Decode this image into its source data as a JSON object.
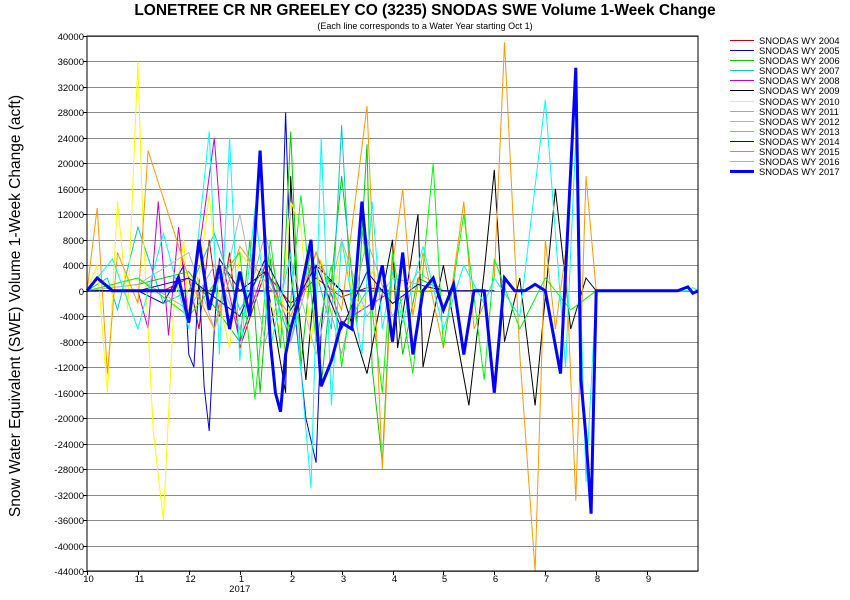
{
  "chart_data": {
    "type": "line",
    "title": "LONETREE CR NR GREELEY CO (3235) SNODAS SWE Volume 1-Week Change",
    "subtitle": "(Each line corresponds to a Water Year starting Oct 1)",
    "ylabel": "Snow Water Equivalent (SWE) Volume 1-Week Change (acft)",
    "xlabel": "",
    "ylim": [
      -44000,
      40000
    ],
    "yticks": [
      40000,
      36000,
      32000,
      28000,
      24000,
      20000,
      16000,
      12000,
      8000,
      4000,
      0,
      -4000,
      -8000,
      -12000,
      -16000,
      -20000,
      -24000,
      -28000,
      -32000,
      -36000,
      -40000,
      -44000
    ],
    "yticks_labels": [
      "40000",
      "36000",
      "32000",
      "28000",
      "24000",
      "20000",
      "16000",
      "12000",
      "8000",
      "4000",
      "0",
      "-4000",
      "-8000",
      "-12000",
      "-16000",
      "-20000",
      "-24000",
      "-28000",
      "-32000",
      "-36000",
      "-40000",
      "-44000"
    ],
    "xlim": [
      0,
      12
    ],
    "xticks": [
      0,
      1,
      2,
      3,
      4,
      5,
      6,
      7,
      8,
      9,
      10,
      11
    ],
    "xticks_labels": [
      "10",
      "11",
      "12",
      "1",
      "2",
      "3",
      "4",
      "5",
      "6",
      "7",
      "8",
      "9"
    ],
    "x_year_label": "2017",
    "x_year_position": 3,
    "grid": true,
    "legend_position": "right",
    "series": [
      {
        "name": "SNODAS WY 2004",
        "color": "#cc0000",
        "width": 1,
        "x": [
          0,
          1.5,
          2.0,
          2.2,
          2.4,
          2.6,
          2.8,
          3.0,
          3.5,
          4.0,
          4.5,
          5.0,
          5.5,
          6.0,
          8.0
        ],
        "y": [
          0,
          0,
          2000,
          -6000,
          8000,
          -4000,
          6000,
          -9000,
          3000,
          -2000,
          2000,
          -1000,
          500,
          0,
          0
        ]
      },
      {
        "name": "SNODAS WY 2005",
        "color": "#0000cc",
        "width": 1,
        "x": [
          0,
          1.0,
          1.5,
          1.9,
          2.0,
          2.1,
          2.2,
          2.3,
          2.4,
          2.5,
          2.6,
          3.0,
          3.8,
          3.9,
          4.0,
          4.3,
          4.5,
          4.6,
          4.7,
          5.0,
          5.5,
          6.0,
          8.0
        ],
        "y": [
          0,
          0,
          -2000,
          4000,
          -10000,
          -12000,
          2000,
          -15000,
          -22000,
          -6000,
          5000,
          0,
          0,
          28000,
          3000,
          -20000,
          -27000,
          -6000,
          2000,
          0,
          0,
          0,
          0
        ]
      },
      {
        "name": "SNODAS WY 2006",
        "color": "#00cc00",
        "width": 1,
        "x": [
          0,
          1.0,
          2.0,
          3.0,
          3.2,
          3.4,
          3.6,
          3.8,
          4.0,
          4.2,
          4.4,
          4.6,
          5.0,
          5.3,
          5.5,
          5.6,
          5.8,
          6.0,
          6.2,
          6.5,
          7.0,
          8.0
        ],
        "y": [
          0,
          1000,
          3000,
          -8000,
          8000,
          -16000,
          5000,
          -9000,
          25000,
          -12000,
          4000,
          -15000,
          18000,
          -5000,
          23000,
          -12000,
          -27000,
          6000,
          -10000,
          2000,
          0,
          0
        ]
      },
      {
        "name": "SNODAS WY 2007",
        "color": "#00cccc",
        "width": 1,
        "x": [
          0,
          0.4,
          0.6,
          1.0,
          1.5,
          2.0,
          2.5,
          3.0,
          3.5,
          4.0,
          4.4,
          4.8,
          5.0,
          5.2,
          5.5,
          6.0,
          6.2,
          6.5,
          7.0,
          8.0
        ],
        "y": [
          0,
          2000,
          -3000,
          10000,
          -2000,
          0,
          9000,
          -3000,
          4000,
          -8000,
          6000,
          -6000,
          26000,
          -4000,
          0,
          0,
          0,
          0,
          0,
          0
        ]
      },
      {
        "name": "SNODAS WY 2008",
        "color": "#cc00cc",
        "width": 1,
        "x": [
          0,
          1.0,
          1.2,
          1.4,
          1.6,
          1.8,
          2.0,
          2.3,
          2.5,
          2.7,
          3.0,
          3.5,
          4.0,
          4.5,
          5.0,
          6.0,
          8.0
        ],
        "y": [
          0,
          0,
          -6000,
          14000,
          -7000,
          10000,
          -5000,
          12000,
          24000,
          3000,
          -8000,
          4000,
          -6000,
          6000,
          -5000,
          0,
          0
        ]
      },
      {
        "name": "SNODAS WY 2009",
        "color": "#000000",
        "width": 1,
        "x": [
          0,
          1.0,
          2.0,
          3.0,
          3.5,
          3.9,
          4.0,
          4.1,
          4.3,
          4.5,
          5.0,
          5.5,
          6.0,
          6.1,
          6.5,
          6.6,
          7.0,
          7.5,
          7.8,
          8.0,
          8.2,
          8.5,
          8.8,
          9.0,
          9.2,
          9.5,
          9.8,
          10.0,
          11.0
        ],
        "y": [
          0,
          0,
          0,
          0,
          3000,
          -16000,
          18000,
          2000,
          -14000,
          4000,
          0,
          -13000,
          8000,
          -9000,
          12000,
          -12000,
          4000,
          -18000,
          3000,
          19000,
          -8000,
          2000,
          -18000,
          -1000,
          16000,
          -6000,
          2000,
          0,
          0
        ]
      },
      {
        "name": "SNODAS WY 2010",
        "color": "#ffff00",
        "width": 1,
        "x": [
          0,
          0.2,
          0.4,
          0.6,
          0.8,
          1.0,
          1.1,
          1.3,
          1.5,
          1.7,
          1.9,
          2.0,
          2.2,
          2.4,
          2.6,
          2.8,
          3.0,
          3.4,
          3.8,
          4.0,
          4.2,
          4.4,
          4.6,
          4.8,
          5.0,
          5.2,
          5.4,
          5.6,
          6.0,
          8.0
        ],
        "y": [
          0,
          4000,
          -16000,
          14000,
          -3000,
          36000,
          10000,
          -22000,
          -36000,
          -3000,
          8000,
          -4000,
          2000,
          15000,
          -2000,
          -9000,
          6000,
          2000,
          -6000,
          14000,
          10000,
          -8000,
          5000,
          -4000,
          8000,
          0,
          -3000,
          3000,
          0,
          0
        ]
      },
      {
        "name": "SNODAS WY 2011",
        "color": "#aaaaaa",
        "width": 1,
        "x": [
          0,
          1.0,
          2.0,
          2.5,
          3.0,
          3.5,
          4.0,
          4.5,
          5.0,
          5.5,
          6.0,
          6.5,
          7.0,
          8.0
        ],
        "y": [
          0,
          2000,
          -3000,
          4000,
          -6000,
          9000,
          -8000,
          6000,
          -10000,
          8000,
          -4000,
          3000,
          0,
          0
        ]
      },
      {
        "name": "SNODAS WY 2012",
        "color": "#b4b4b4",
        "width": 1,
        "x": [
          0,
          1.0,
          2.0,
          2.5,
          3.0,
          3.5,
          4.0,
          4.5,
          5.0,
          5.5,
          6.0,
          7.0,
          8.0
        ],
        "y": [
          0,
          1000,
          6000,
          -6000,
          12000,
          -8000,
          5000,
          -10000,
          8000,
          -4000,
          2000,
          0,
          0
        ]
      },
      {
        "name": "SNODAS WY 2013",
        "color": "#ff9900",
        "width": 1,
        "x": [
          0,
          0.2,
          0.4,
          0.6,
          1.0,
          1.2,
          2.0,
          2.5,
          3.0,
          4.0,
          4.5,
          5.0,
          5.5,
          5.8,
          6.0,
          6.2,
          6.4,
          6.6,
          7.0,
          7.4,
          7.6,
          8.0,
          8.2,
          8.5,
          8.8,
          9.0,
          9.2,
          9.4,
          9.6,
          9.8,
          10.0,
          11.0
        ],
        "y": [
          0,
          13000,
          -13000,
          6000,
          -2000,
          22000,
          2000,
          -6000,
          7000,
          -4000,
          6000,
          -3000,
          29000,
          -28000,
          4000,
          16000,
          -4000,
          6000,
          -9000,
          14000,
          -6000,
          2000,
          39000,
          -10000,
          -44000,
          8000,
          -6000,
          6000,
          -33000,
          18000,
          0,
          0
        ]
      },
      {
        "name": "SNODAS WY 2014",
        "color": "#00009c",
        "width": 1,
        "x": [
          0,
          1.0,
          2.0,
          3.0,
          3.5,
          4.0,
          4.5,
          5.0,
          5.5,
          6.0,
          6.5,
          7.0,
          8.0
        ],
        "y": [
          0,
          0,
          2000,
          -4000,
          5000,
          -3000,
          4000,
          -6000,
          3000,
          -2000,
          1000,
          0,
          0
        ]
      },
      {
        "name": "SNODAS WY 2015",
        "color": "#00ff00",
        "width": 1,
        "x": [
          0,
          1.0,
          2.0,
          3.0,
          3.3,
          3.6,
          3.9,
          4.2,
          4.5,
          4.8,
          5.0,
          5.4,
          5.8,
          6.0,
          6.4,
          6.8,
          7.0,
          7.4,
          7.8,
          8.0,
          8.5,
          9.0,
          9.5,
          10.0,
          11.0
        ],
        "y": [
          0,
          2000,
          -4000,
          6000,
          -17000,
          8000,
          -10000,
          15000,
          -8000,
          4000,
          -12000,
          10000,
          -16000,
          6000,
          -13000,
          20000,
          -9000,
          12000,
          -14000,
          5000,
          -6000,
          2000,
          -3000,
          0,
          0
        ]
      },
      {
        "name": "SNODAS WY 2016",
        "color": "#00ffff",
        "width": 1,
        "x": [
          0,
          0.5,
          1.0,
          1.5,
          2.0,
          2.4,
          2.6,
          2.8,
          3.0,
          3.3,
          3.6,
          4.0,
          4.4,
          4.6,
          4.8,
          5.0,
          5.4,
          5.6,
          5.8,
          6.0,
          6.2,
          6.6,
          7.0,
          7.4,
          7.8,
          8.0,
          8.5,
          9.0,
          9.4,
          9.6,
          9.8,
          10.0,
          11.0,
          11.8,
          11.9,
          12.0
        ],
        "y": [
          0,
          5000,
          -6000,
          9000,
          -6000,
          25000,
          -10000,
          24000,
          -11000,
          13000,
          -9000,
          6000,
          -31000,
          24000,
          -18000,
          8000,
          -10000,
          14000,
          -6000,
          3000,
          -5000,
          7000,
          -6000,
          4000,
          -2000,
          2000,
          -4000,
          30000,
          -12000,
          24000,
          -30000,
          0,
          0,
          0,
          500,
          0
        ]
      },
      {
        "name": "SNODAS WY 2017",
        "color": "#0000ff",
        "width": 3,
        "x": [
          0,
          0.2,
          0.5,
          0.7,
          1.0,
          1.2,
          1.5,
          1.7,
          1.8,
          2.0,
          2.2,
          2.4,
          2.6,
          2.8,
          3.0,
          3.2,
          3.4,
          3.6,
          3.7,
          3.8,
          3.9,
          4.0,
          4.2,
          4.4,
          4.6,
          4.8,
          5.0,
          5.2,
          5.4,
          5.6,
          5.8,
          6.0,
          6.2,
          6.4,
          6.6,
          6.8,
          7.0,
          7.2,
          7.4,
          7.6,
          7.8,
          8.0,
          8.2,
          8.4,
          8.6,
          8.8,
          9.0,
          9.3,
          9.6,
          9.7,
          9.8,
          9.9,
          10.0,
          10.2,
          11.6,
          11.8,
          11.9,
          12.0
        ],
        "y": [
          0,
          2000,
          0,
          0,
          0,
          0,
          0,
          0,
          2000,
          -5000,
          8000,
          -3000,
          4000,
          -6000,
          3000,
          -4000,
          22000,
          -8000,
          -16000,
          -19000,
          -10000,
          -6000,
          0,
          8000,
          -15000,
          -11000,
          -5000,
          -6000,
          14000,
          -3000,
          4000,
          -8000,
          6000,
          -10000,
          0,
          2000,
          -3000,
          1000,
          -10000,
          0,
          0,
          -16000,
          2000,
          0,
          0,
          1000,
          0,
          -13000,
          35000,
          -14000,
          -23000,
          -35000,
          0,
          0,
          0,
          600,
          -400,
          0
        ]
      }
    ]
  }
}
